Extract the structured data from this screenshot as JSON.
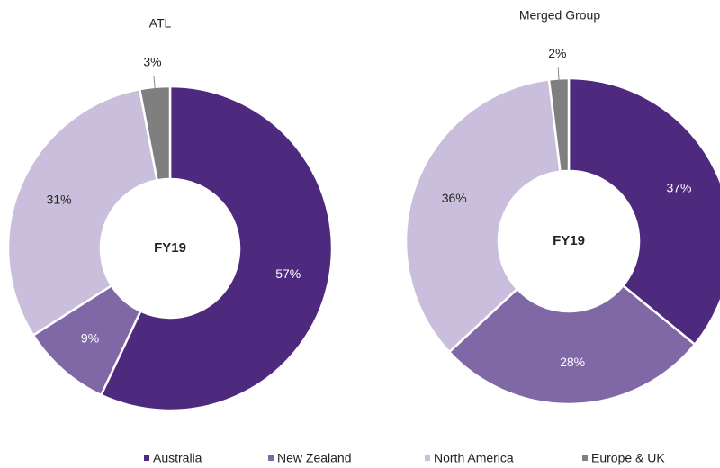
{
  "chart_data": [
    {
      "type": "donut",
      "title": "ATL",
      "center_label": "FY19",
      "categories": [
        "Australia",
        "New Zealand",
        "North America",
        "Europe & UK"
      ],
      "values": [
        57,
        9,
        31,
        3
      ],
      "value_labels": [
        "57%",
        "9%",
        "31%",
        "3%"
      ],
      "colors": [
        "#4e2a7e",
        "#8068a6",
        "#c9bfdc",
        "#7f7f7f"
      ]
    },
    {
      "type": "donut",
      "title": "Merged Group",
      "center_label": "FY19",
      "categories": [
        "Australia",
        "New Zealand",
        "North America",
        "Europe & UK"
      ],
      "values": [
        37,
        28,
        36,
        2
      ],
      "value_labels": [
        "37%",
        "28%",
        "36%",
        "2%"
      ],
      "colors": [
        "#4e2a7e",
        "#8068a6",
        "#c9bfdc",
        "#7f7f7f"
      ]
    }
  ]
}
